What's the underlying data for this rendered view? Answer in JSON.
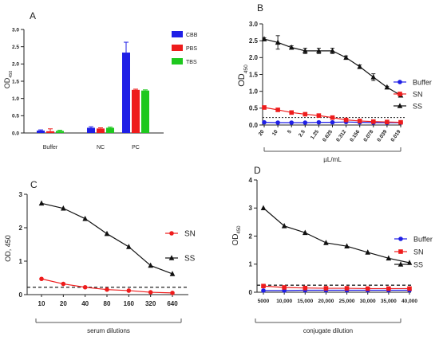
{
  "colors": {
    "CBB": "#1f1fe6",
    "PBS": "#ee1c1c",
    "TBS": "#1ec81e",
    "Buffer": "#1f1fe6",
    "SN": "#ee1c1c",
    "SS": "#111111",
    "axis": "#222222"
  },
  "chart_data": [
    {
      "panel": "A",
      "type": "bar",
      "ylabel": "OD",
      "ylabel_sub": "450",
      "categories": [
        "Buffer",
        "NC",
        "PC"
      ],
      "ylim": [
        0,
        3.0
      ],
      "yticks": [
        "0.0",
        "0.5",
        "1.0",
        "1.5",
        "2.0",
        "2.5",
        "3.0"
      ],
      "legend_position": "top-right",
      "series": [
        {
          "name": "CBB",
          "values": [
            0.07,
            0.15,
            2.33
          ],
          "errors": [
            0.02,
            0.03,
            0.3
          ]
        },
        {
          "name": "PBS",
          "values": [
            0.05,
            0.13,
            1.25
          ],
          "errors": [
            0.07,
            0.02,
            0.02
          ]
        },
        {
          "name": "TBS",
          "values": [
            0.06,
            0.15,
            1.23
          ],
          "errors": [
            0.02,
            0.02,
            0.02
          ]
        }
      ]
    },
    {
      "panel": "B",
      "type": "line",
      "ylabel": "OD",
      "ylabel_sub": "450",
      "xlabel": "µL/mL",
      "x": [
        "20",
        "10",
        "5",
        "2.5",
        "1.25",
        "0.625",
        "0.312",
        "0.156",
        "0.078",
        "0.039",
        "0.019"
      ],
      "ylim": [
        0,
        3.0
      ],
      "yticks": [
        "0.0",
        "0.5",
        "1.0",
        "1.5",
        "2.0",
        "2.5",
        "3.0"
      ],
      "cutoff": 0.22,
      "legend_position": "right",
      "series": [
        {
          "name": "Buffer",
          "marker": "circle",
          "values": [
            0.08,
            0.07,
            0.07,
            0.07,
            0.08,
            0.08,
            0.09,
            0.08,
            0.07,
            0.07,
            0.07
          ]
        },
        {
          "name": "SN",
          "marker": "square",
          "values": [
            0.52,
            0.45,
            0.37,
            0.32,
            0.28,
            0.22,
            0.15,
            0.12,
            0.1,
            0.09,
            0.08
          ]
        },
        {
          "name": "SS",
          "marker": "triangle",
          "values": [
            2.55,
            2.45,
            2.3,
            2.2,
            2.2,
            2.2,
            2.0,
            1.73,
            1.42,
            1.12,
            0.88
          ],
          "errors": [
            0.04,
            0.2,
            0.05,
            0.08,
            0.08,
            0.08,
            0.05,
            0.05,
            0.1,
            0.03,
            0.03
          ]
        }
      ]
    },
    {
      "panel": "C",
      "type": "line",
      "ylabel": "OD, 450",
      "xlabel": "serum dilutions",
      "x": [
        "10",
        "20",
        "40",
        "80",
        "160",
        "320",
        "640"
      ],
      "ylim": [
        0,
        3
      ],
      "yticks": [
        "0",
        "1",
        "2",
        "3"
      ],
      "cutoff": 0.22,
      "legend_position": "right",
      "series": [
        {
          "name": "SN",
          "marker": "circle",
          "values": [
            0.47,
            0.32,
            0.22,
            0.15,
            0.12,
            0.07,
            0.05
          ]
        },
        {
          "name": "SS",
          "marker": "triangle",
          "values": [
            2.73,
            2.58,
            2.27,
            1.82,
            1.43,
            0.87,
            0.62
          ]
        }
      ]
    },
    {
      "panel": "D",
      "type": "line",
      "ylabel": "OD",
      "ylabel_sub": "450",
      "xlabel": "conjugate dilution",
      "x": [
        "5000",
        "10,000",
        "15,000",
        "20,000",
        "25,000",
        "30,000",
        "35,000",
        "40,000"
      ],
      "ylim": [
        0,
        4
      ],
      "yticks": [
        "0",
        "1",
        "2",
        "3",
        "4"
      ],
      "cutoff": 0.25,
      "legend_position": "right",
      "series": [
        {
          "name": "Buffer",
          "marker": "circle",
          "values": [
            0.06,
            0.06,
            0.07,
            0.07,
            0.07,
            0.07,
            0.07,
            0.07
          ]
        },
        {
          "name": "SN",
          "marker": "square",
          "values": [
            0.22,
            0.17,
            0.15,
            0.14,
            0.14,
            0.13,
            0.13,
            0.13
          ]
        },
        {
          "name": "SS",
          "marker": "triangle",
          "values": [
            3.0,
            2.36,
            2.12,
            1.76,
            1.64,
            1.42,
            1.21,
            1.05
          ]
        }
      ]
    }
  ]
}
